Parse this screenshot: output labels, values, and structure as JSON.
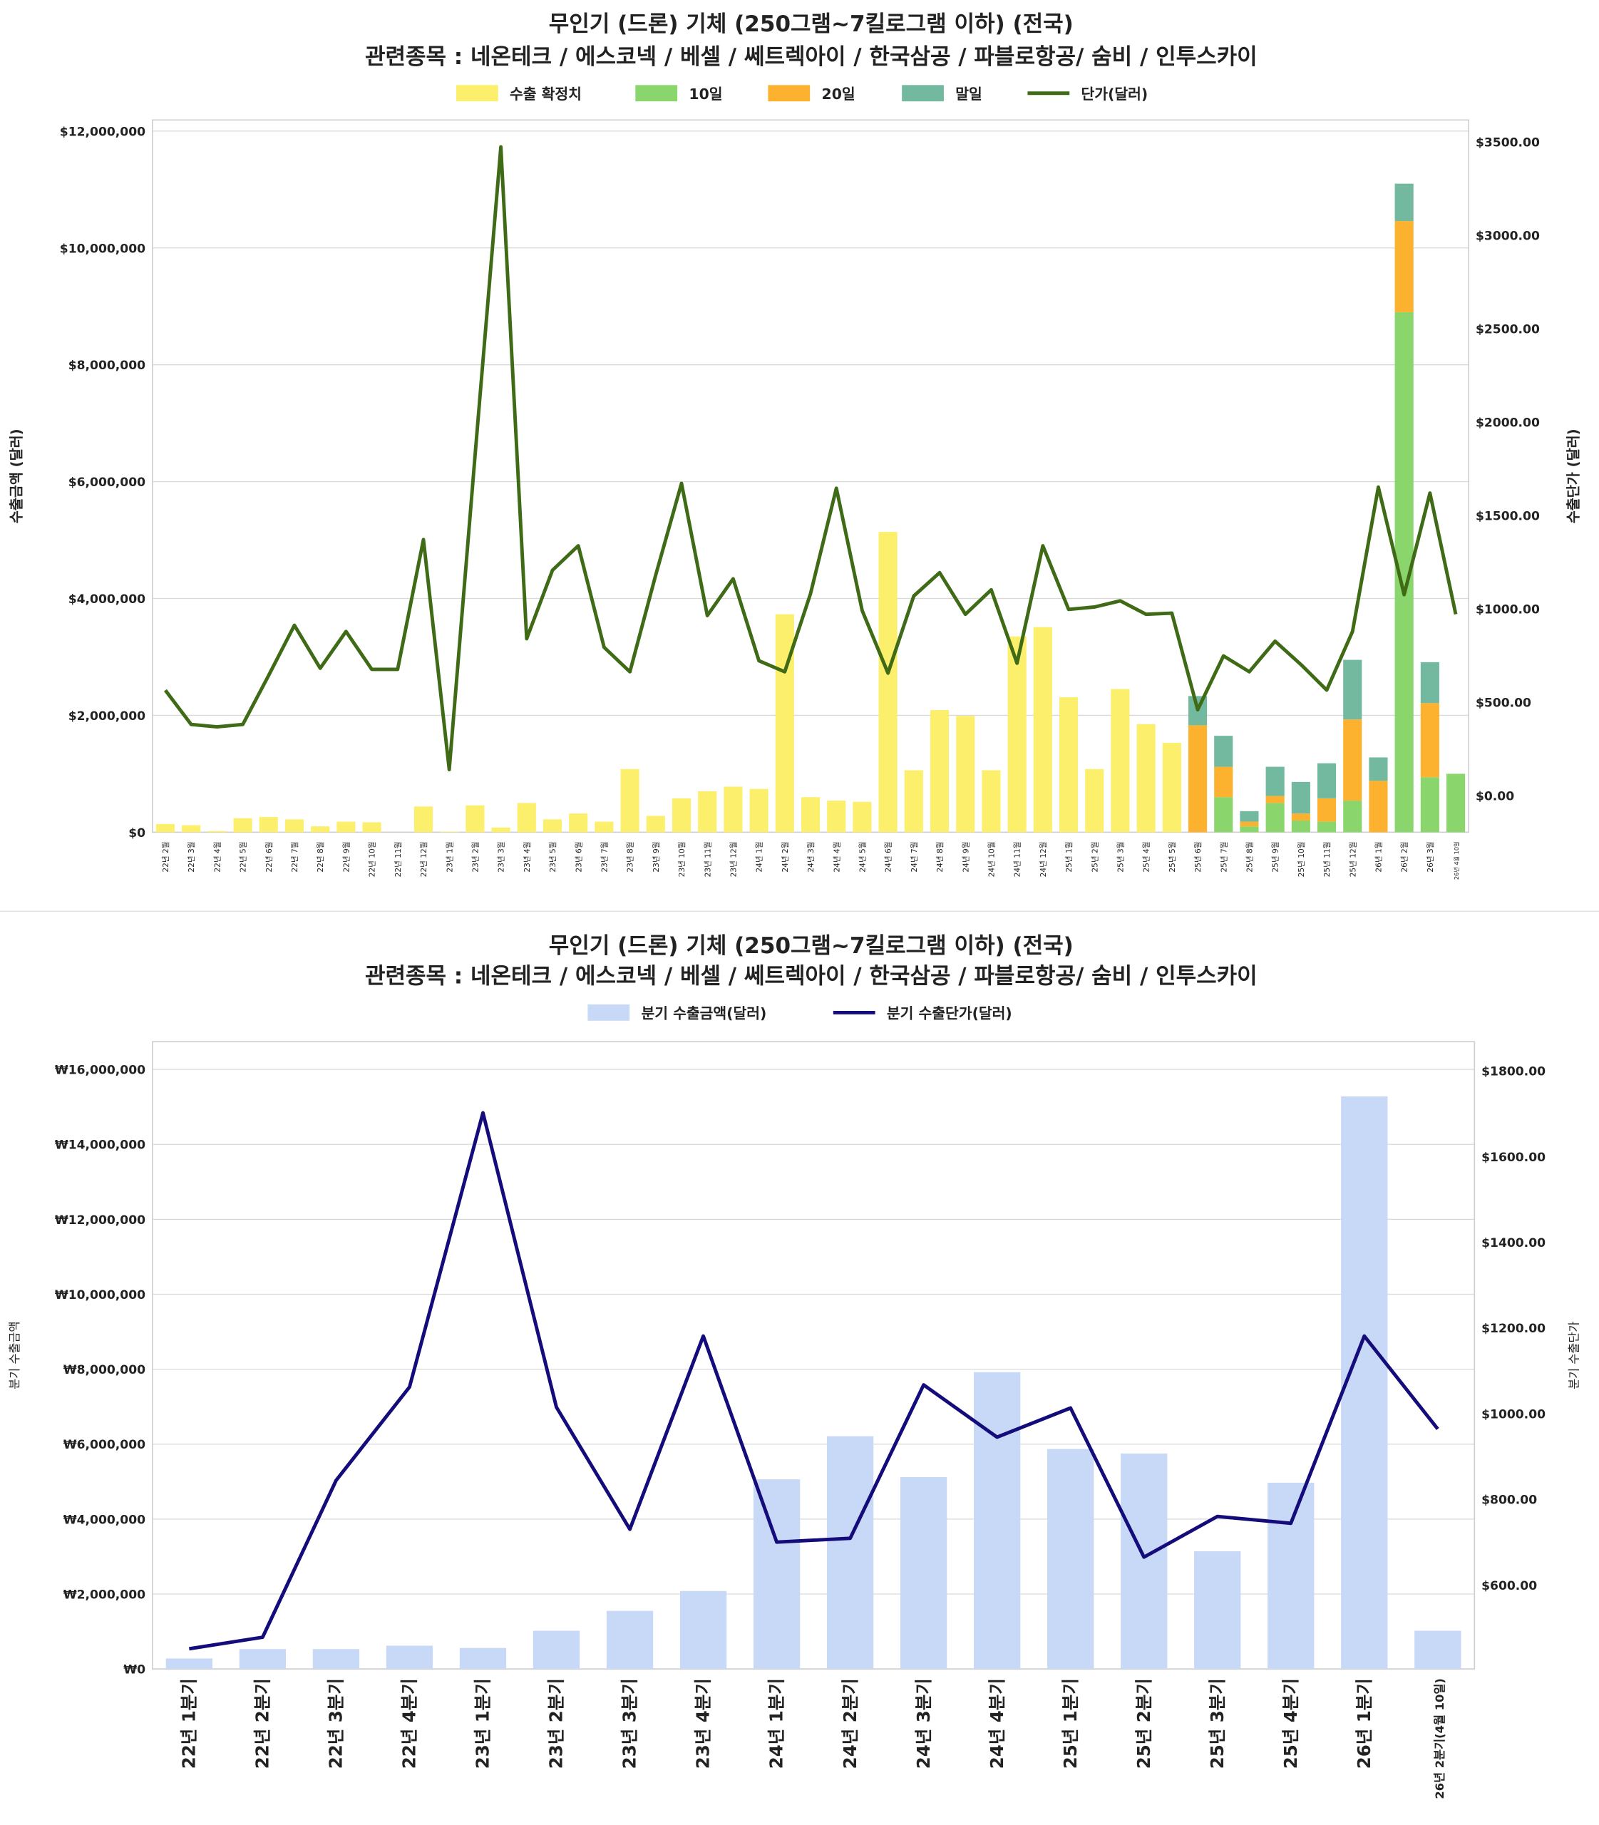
{
  "chart_data": [
    {
      "type": "bar",
      "stacked": true,
      "title": "무인기 (드론) 기체 (250그램~7킬로그램 이하) (전국)",
      "subtitle": "관련종목 : 네온테크 / 에스코넥 / 베셀 / 쎄트렉아이 / 한국삼공 / 파블로항공/ 숨비 / 인투스카이",
      "ylabel": "수출금액 (달러)",
      "y2label": "수출단가 (달러)",
      "ylim": [
        0,
        12190000
      ],
      "y2lim": [
        -197,
        3617
      ],
      "yticks": [
        "$0",
        "$2,000,000",
        "$4,000,000",
        "$6,000,000",
        "$8,000,000",
        "$10,000,000",
        "$12,000,000"
      ],
      "ytick_values": [
        0,
        2000000,
        4000000,
        6000000,
        8000000,
        10000000,
        12000000
      ],
      "y2ticks": [
        "$0.00",
        "$500.00",
        "$1000.00",
        "$1500.00",
        "$2000.00",
        "$2500.00",
        "$3000.00",
        "$3500.00"
      ],
      "y2tick_values": [
        0,
        500,
        1000,
        1500,
        2000,
        2500,
        3000,
        3500
      ],
      "legend": [
        "수출 확정치",
        "10일",
        "20일",
        "말일",
        "단가(달러)"
      ],
      "legend_position": "top-center",
      "grid": true,
      "colors": {
        "confirmed": "#fcef6c",
        "d10": "#8bd66c",
        "d20": "#fcb12f",
        "end": "#72b9a0",
        "price": "#3f6b17"
      },
      "categories": [
        "22년 2월",
        "22년 3월",
        "22년 4월",
        "22년 5월",
        "22년 6월",
        "22년 7월",
        "22년 8월",
        "22년 9월",
        "22년 10월",
        "22년 11월",
        "22년 12월",
        "23년 1월",
        "23년 2월",
        "23년 3월",
        "23년 4월",
        "23년 5월",
        "23년 6월",
        "23년 7월",
        "23년 8월",
        "23년 9월",
        "23년 10월",
        "23년 11월",
        "23년 12월",
        "24년 1월",
        "24년 2월",
        "24년 3월",
        "24년 4월",
        "24년 5월",
        "24년 6월",
        "24년 7월",
        "24년 8월",
        "24년 9월",
        "24년 10월",
        "24년 11월",
        "24년 12월",
        "25년 1월",
        "25년 2월",
        "25년 3월",
        "25년 4월",
        "25년 5월",
        "25년 6월",
        "25년 7월",
        "25년 8월",
        "25년 9월",
        "25년 10월",
        "25년 11월",
        "25년 12월",
        "26년 1월",
        "26년 2월",
        "26년 3월",
        "26년 4월 10일"
      ],
      "series": [
        {
          "name": "수출 확정치",
          "values": [
            140000,
            120000,
            20000,
            240000,
            260000,
            220000,
            100000,
            180000,
            170000,
            0,
            440000,
            10000,
            460000,
            80000,
            500000,
            220000,
            320000,
            180000,
            1080000,
            280000,
            580000,
            700000,
            780000,
            740000,
            3730000,
            600000,
            540000,
            520000,
            5140000,
            1060000,
            2090000,
            1990000,
            1060000,
            3350000,
            3510000,
            2310000,
            1080000,
            2450000,
            1850000,
            1530000,
            0,
            0,
            0,
            0,
            0,
            0,
            0,
            0,
            0,
            0,
            0
          ]
        },
        {
          "name": "10일",
          "values": [
            0,
            0,
            0,
            0,
            0,
            0,
            0,
            0,
            0,
            0,
            0,
            0,
            0,
            0,
            0,
            0,
            0,
            0,
            0,
            0,
            0,
            0,
            0,
            0,
            0,
            0,
            0,
            0,
            0,
            0,
            0,
            0,
            0,
            0,
            0,
            0,
            0,
            0,
            0,
            0,
            0,
            600000,
            100000,
            500000,
            200000,
            180000,
            540000,
            0,
            8900000,
            940000,
            1000000
          ]
        },
        {
          "name": "20일",
          "values": [
            0,
            0,
            0,
            0,
            0,
            0,
            0,
            0,
            0,
            0,
            0,
            0,
            0,
            0,
            0,
            0,
            0,
            0,
            0,
            0,
            0,
            0,
            0,
            0,
            0,
            0,
            0,
            0,
            0,
            0,
            0,
            0,
            0,
            0,
            0,
            0,
            0,
            0,
            0,
            0,
            1830000,
            520000,
            80000,
            120000,
            120000,
            400000,
            1390000,
            880000,
            1560000,
            1270000,
            0
          ]
        },
        {
          "name": "말일",
          "values": [
            0,
            0,
            0,
            0,
            0,
            0,
            0,
            0,
            0,
            0,
            0,
            0,
            0,
            0,
            0,
            0,
            0,
            0,
            0,
            0,
            0,
            0,
            0,
            0,
            0,
            0,
            0,
            0,
            0,
            0,
            0,
            0,
            0,
            0,
            0,
            0,
            0,
            0,
            0,
            0,
            500000,
            530000,
            180000,
            500000,
            540000,
            600000,
            1020000,
            400000,
            640000,
            700000,
            0
          ]
        },
        {
          "name": "단가(달러)",
          "axis": "right",
          "values": [
            563,
            380,
            367,
            380,
            642,
            911,
            681,
            878,
            675,
            675,
            1370,
            138,
            1820,
            3473,
            839,
            1206,
            1337,
            793,
            662,
            1180,
            1671,
            963,
            1160,
            721,
            662,
            1081,
            1645,
            990,
            655,
            1068,
            1193,
            970,
            1101,
            708,
            1337,
            996,
            1009,
            1042,
            970,
            976,
            459,
            747,
            662,
            826,
            701,
            564,
            878,
            1651,
            1075,
            1619,
            970
          ]
        }
      ]
    },
    {
      "type": "bar",
      "title": "무인기 (드론) 기체 (250그램~7킬로그램 이하) (전국)",
      "subtitle": "관련종목 : 네온테크 / 에스코넥 / 베셀 / 쎄트렉아이 / 한국삼공 / 파블로항공/ 숨비 / 인투스카이",
      "ylabel": "분기 수출금액",
      "y2label": "분기 수출단가",
      "ylim": [
        0,
        16740000
      ],
      "y2lim": [
        404,
        1868
      ],
      "yticks": [
        "₩0",
        "₩2,000,000",
        "₩4,000,000",
        "₩6,000,000",
        "₩8,000,000",
        "₩10,000,000",
        "₩12,000,000",
        "₩14,000,000",
        "₩16,000,000"
      ],
      "ytick_values": [
        0,
        2000000,
        4000000,
        6000000,
        8000000,
        10000000,
        12000000,
        14000000,
        16000000
      ],
      "y2ticks": [
        "$600.00",
        "$800.00",
        "$1000.00",
        "$1200.00",
        "$1400.00",
        "$1600.00",
        "$1800.00"
      ],
      "y2tick_values": [
        600,
        800,
        1000,
        1200,
        1400,
        1600,
        1800
      ],
      "legend": [
        "분기 수출금액(달러)",
        "분기 수출단가(달러)"
      ],
      "legend_position": "top-center",
      "grid": true,
      "colors": {
        "bar": "#c7d9f6",
        "line": "#140c7a"
      },
      "categories": [
        "22년 1분기",
        "22년 2분기",
        "22년 3분기",
        "22년 4분기",
        "23년 1분기",
        "23년 2분기",
        "23년 3분기",
        "23년 4분기",
        "24년 1분기",
        "24년 2분기",
        "24년 3분기",
        "24년 4분기",
        "25년 1분기",
        "25년 2분기",
        "25년 3분기",
        "25년 4분기",
        "26년 1분기",
        "26년 2분기(4월 10일)"
      ],
      "series": [
        {
          "name": "분기 수출금액(달러)",
          "values": [
            280000,
            530000,
            530000,
            620000,
            560000,
            1020000,
            1550000,
            2080000,
            5060000,
            6210000,
            5120000,
            7920000,
            5870000,
            5750000,
            3140000,
            4970000,
            15280000,
            1020000
          ]
        },
        {
          "name": "분기 수출단가(달러)",
          "axis": "right",
          "values": [
            451,
            478,
            844,
            1062,
            1702,
            1015,
            730,
            1181,
            700,
            709,
            1067,
            945,
            1013,
            665,
            760,
            744,
            1181,
            964
          ]
        }
      ]
    }
  ]
}
